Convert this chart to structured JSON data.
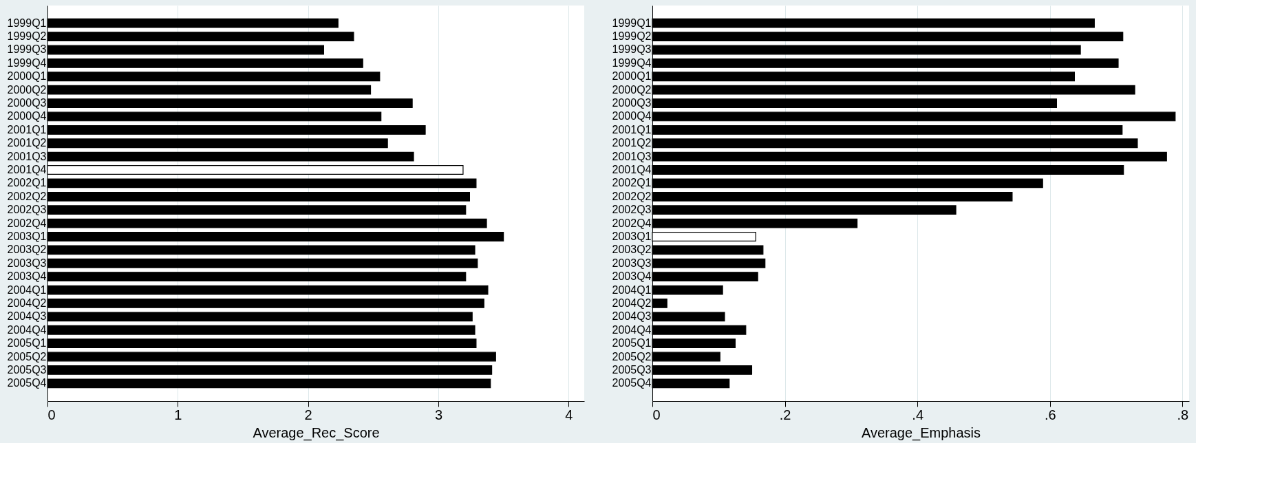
{
  "chart_data": [
    {
      "type": "bar",
      "orientation": "horizontal",
      "xlabel": "Average_Rec_Score",
      "grid": "x",
      "categories": [
        "1999Q1",
        "1999Q2",
        "1999Q3",
        "1999Q4",
        "2000Q1",
        "2000Q2",
        "2000Q3",
        "2000Q4",
        "2001Q1",
        "2001Q2",
        "2001Q3",
        "2001Q4",
        "2002Q1",
        "2002Q2",
        "2002Q3",
        "2002Q4",
        "2003Q1",
        "2003Q2",
        "2003Q3",
        "2003Q4",
        "2004Q1",
        "2004Q2",
        "2004Q3",
        "2004Q4",
        "2005Q1",
        "2005Q2",
        "2005Q3",
        "2005Q4"
      ],
      "values": [
        2.23,
        2.35,
        2.12,
        2.42,
        2.55,
        2.48,
        2.8,
        2.56,
        2.9,
        2.61,
        2.81,
        3.19,
        3.29,
        3.24,
        3.21,
        3.37,
        3.5,
        3.28,
        3.3,
        3.21,
        3.38,
        3.35,
        3.26,
        3.28,
        3.29,
        3.44,
        3.41,
        3.4
      ],
      "colors": [
        "#000000",
        "#000000",
        "#000000",
        "#000000",
        "#000000",
        "#000000",
        "#000000",
        "#000000",
        "#000000",
        "#000000",
        "#000000",
        "#ffffff",
        "#000000",
        "#000000",
        "#000000",
        "#000000",
        "#000000",
        "#000000",
        "#000000",
        "#000000",
        "#000000",
        "#000000",
        "#000000",
        "#000000",
        "#000000",
        "#000000",
        "#000000",
        "#000000"
      ],
      "xlim": [
        0,
        4.12
      ],
      "xticks": [
        0,
        1,
        2,
        3,
        4
      ]
    },
    {
      "type": "bar",
      "orientation": "horizontal",
      "xlabel": "Average_Emphasis",
      "grid": "x",
      "categories": [
        "1999Q1",
        "1999Q2",
        "1999Q3",
        "1999Q4",
        "2000Q1",
        "2000Q2",
        "2000Q3",
        "2000Q4",
        "2001Q1",
        "2001Q2",
        "2001Q3",
        "2001Q4",
        "2002Q1",
        "2002Q2",
        "2002Q3",
        "2002Q4",
        "2003Q1",
        "2003Q2",
        "2003Q3",
        "2003Q4",
        "2004Q1",
        "2004Q2",
        "2004Q3",
        "2004Q4",
        "2005Q1",
        "2005Q2",
        "2005Q3",
        "2005Q4"
      ],
      "values": [
        0.667,
        0.71,
        0.646,
        0.703,
        0.637,
        0.728,
        0.61,
        0.789,
        0.709,
        0.732,
        0.776,
        0.711,
        0.589,
        0.543,
        0.458,
        0.309,
        0.156,
        0.167,
        0.17,
        0.159,
        0.106,
        0.022,
        0.109,
        0.141,
        0.125,
        0.102,
        0.15,
        0.116
      ],
      "colors": [
        "#000000",
        "#000000",
        "#000000",
        "#000000",
        "#000000",
        "#000000",
        "#000000",
        "#000000",
        "#000000",
        "#000000",
        "#000000",
        "#000000",
        "#000000",
        "#000000",
        "#000000",
        "#000000",
        "#ffffff",
        "#000000",
        "#000000",
        "#000000",
        "#000000",
        "#000000",
        "#000000",
        "#000000",
        "#000000",
        "#000000",
        "#000000",
        "#000000"
      ],
      "xlim": [
        0,
        0.81
      ],
      "xticks": [
        0,
        {
          "value": 0.2,
          "label": ".2"
        },
        {
          "value": 0.4,
          "label": ".4"
        },
        {
          "value": 0.6,
          "label": ".6"
        },
        {
          "value": 0.8,
          "label": ".8"
        }
      ]
    }
  ]
}
